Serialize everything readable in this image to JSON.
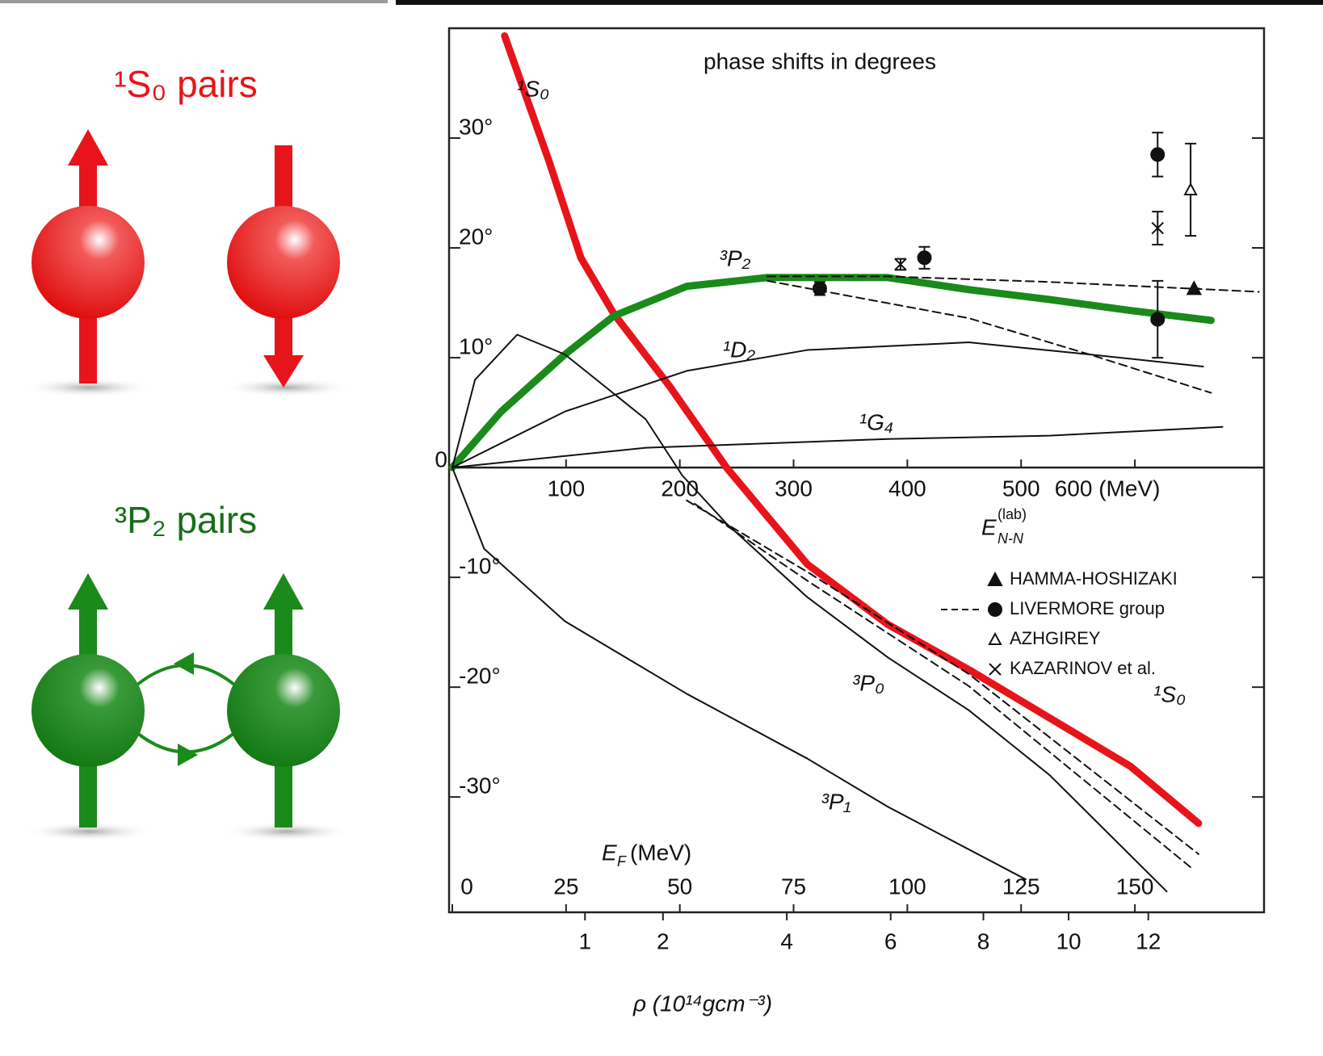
{
  "left_panel": {
    "s0_label": "¹S₀ pairs",
    "p2_label": "³P₂ pairs"
  },
  "chart_data": {
    "type": "line",
    "title": "phase shifts in degrees",
    "xlim": [
      0,
      710
    ],
    "ylim": [
      -40.5,
      40
    ],
    "xticks": [
      100,
      200,
      300,
      400,
      500,
      {
        "value": 600,
        "label": "600 (MeV)"
      }
    ],
    "yticks": [
      {
        "value": -30,
        "label": "-30°"
      },
      {
        "value": -20,
        "label": "-20°"
      },
      {
        "value": -10,
        "label": "-10°"
      },
      0,
      {
        "value": 10,
        "label": "10°"
      },
      {
        "value": 20,
        "label": "20°"
      },
      {
        "value": 30,
        "label": "30°"
      }
    ],
    "xlabel": "E",
    "xlabel_sub": "N-N",
    "xlabel_sup": "(lab)",
    "x2lim": [
      0,
      177.5
    ],
    "x2ticks": [
      0,
      25,
      50,
      75,
      100,
      125,
      150
    ],
    "x2label": "E",
    "x2label_sub": "F",
    "x2label_unit": "(MeV)",
    "x3lim": [
      0,
      15
    ],
    "x3scale": "power",
    "x3power": 0.667,
    "x3ticks": [
      1,
      2,
      4,
      6,
      8,
      10,
      12
    ],
    "x3label": "ρ (10¹⁴gcm⁻³)",
    "series": [
      {
        "name": "¹S₀",
        "color": "#e8141b",
        "style": "thick",
        "x": [
          46,
          85,
          113,
          142,
          191,
          241,
          312,
          383,
          454,
          525,
          596,
          656
        ],
        "values": [
          39.3,
          27.9,
          19.1,
          14,
          7.4,
          0,
          -8.8,
          -14.3,
          -18.4,
          -22.8,
          -27.2,
          -32.4
        ]
      },
      {
        "name": "³P₂",
        "color": "#1a8a1a",
        "style": "thick",
        "x": [
          0,
          43,
          99,
          142,
          206,
          277,
          383,
          454,
          525,
          596,
          667
        ],
        "values": [
          0,
          5.1,
          10.3,
          13.8,
          16.5,
          17.3,
          17.3,
          16.2,
          15.3,
          14.3,
          13.4
        ]
      },
      {
        "name": "³P₀",
        "color": "#111111",
        "style": "thin",
        "x": [
          0,
          20,
          57,
          99,
          170,
          202,
          241,
          312,
          383,
          454,
          525,
          628
        ],
        "values": [
          0,
          8,
          12.1,
          10.3,
          4.4,
          -0.7,
          -5.1,
          -11.8,
          -17.3,
          -22.1,
          -28,
          -38.6
        ]
      },
      {
        "name": "¹D₂",
        "color": "#111111",
        "style": "thin",
        "x": [
          0,
          99,
          206,
          312,
          454,
          560,
          660
        ],
        "values": [
          0,
          5.1,
          8.8,
          10.7,
          11.4,
          10.3,
          9.2
        ]
      },
      {
        "name": "¹G₄",
        "color": "#111111",
        "style": "thin",
        "x": [
          0,
          170,
          383,
          525,
          677
        ],
        "values": [
          0,
          1.8,
          2.6,
          2.9,
          3.7
        ]
      },
      {
        "name": "³P₁",
        "color": "#111111",
        "style": "thin",
        "x": [
          0,
          28,
          99,
          206,
          312,
          383,
          504
        ],
        "values": [
          0,
          -7.4,
          -14,
          -20.6,
          -26.5,
          -30.9,
          -37.5
        ]
      },
      {
        "color": "#111111",
        "style": "dashed",
        "x": [
          277,
          383,
          525,
          709
        ],
        "values": [
          17.4,
          17.4,
          16.9,
          16
        ]
      },
      {
        "color": "#111111",
        "style": "dashed",
        "x": [
          277,
          454,
          560,
          667
        ],
        "values": [
          17,
          13.6,
          10.3,
          6.8
        ]
      },
      {
        "color": "#111111",
        "style": "dashed",
        "x": [
          213,
          312,
          454,
          649
        ],
        "values": [
          -3.3,
          -10.3,
          -19.9,
          -36.4
        ]
      },
      {
        "color": "#111111",
        "style": "dashed",
        "x": [
          206,
          312,
          454,
          656
        ],
        "values": [
          -3,
          -9.5,
          -18.8,
          -35.2
        ]
      }
    ],
    "markers": [
      {
        "name": "HAMMA-HOSHIZAKI",
        "marker": "filled-triangle",
        "x": [
          652
        ],
        "values": [
          16.3
        ],
        "errors": [
          0
        ]
      },
      {
        "name": "LIVERMORE group",
        "marker": "filled-circle",
        "x": [
          323,
          415,
          620,
          620
        ],
        "values": [
          16.3,
          19.1,
          28.5,
          13.5
        ],
        "errors": [
          0.6,
          1,
          2,
          3.5
        ]
      },
      {
        "name": "AZHGIREY",
        "marker": "open-triangle",
        "x": [
          649
        ],
        "values": [
          25.3
        ],
        "errors": [
          4.2
        ]
      },
      {
        "name": "KAZARINOV et al.",
        "marker": "cross",
        "x": [
          394,
          620
        ],
        "values": [
          18.5,
          21.8
        ],
        "errors": [
          0.5,
          1.5
        ]
      }
    ]
  }
}
